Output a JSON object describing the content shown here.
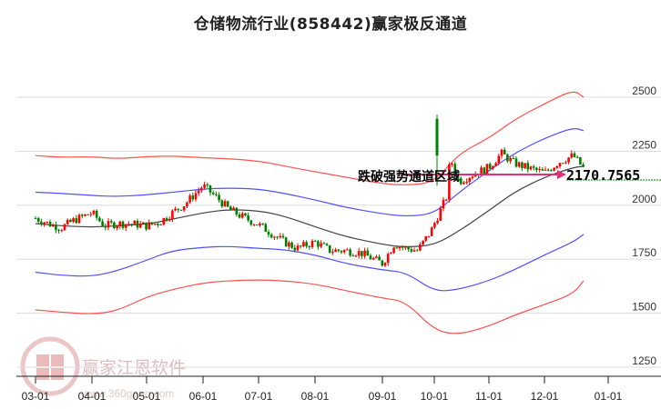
{
  "title": "仓储物流行业(858442)赢家极反通道",
  "chart_data": {
    "type": "candlestick",
    "title": "仓储物流行业(858442)赢家极反通道",
    "xlabel": "",
    "ylabel": "",
    "ylim": [
      1200,
      2600
    ],
    "y_ticks": [
      2500,
      2250,
      2000,
      1750,
      1500,
      1250
    ],
    "x_ticks": [
      "03-01",
      "04-01",
      "05-01",
      "06-01",
      "07-01",
      "08-01",
      "09-01",
      "10-01",
      "11-01",
      "12-01",
      "01-01"
    ],
    "grid": "horizontal",
    "annotation": "跌破强势通道区域",
    "last_value_label": "2170.7565",
    "last_value": 2170.7565,
    "series": [
      {
        "name": "outer_upper_channel",
        "color": "#ff3333",
        "x": [
          "03-01",
          "03-15",
          "04-01",
          "04-15",
          "05-01",
          "05-15",
          "06-01",
          "06-15",
          "07-01",
          "07-15",
          "08-01",
          "08-15",
          "09-01",
          "09-15",
          "10-01",
          "10-15",
          "11-01",
          "11-15",
          "12-01",
          "12-15",
          "12-20"
        ],
        "values": [
          2230,
          2222,
          2225,
          2215,
          2225,
          2228,
          2220,
          2215,
          2205,
          2182,
          2155,
          2130,
          2100,
          2092,
          2105,
          2240,
          2310,
          2395,
          2470,
          2535,
          2500
        ]
      },
      {
        "name": "inner_upper_channel",
        "color": "#3333ff",
        "x": [
          "03-01",
          "03-15",
          "04-01",
          "04-15",
          "05-01",
          "05-15",
          "06-01",
          "06-15",
          "07-01",
          "07-15",
          "08-01",
          "08-15",
          "09-01",
          "09-15",
          "10-01",
          "10-15",
          "11-01",
          "11-15",
          "12-01",
          "12-15",
          "12-20"
        ],
        "values": [
          2060,
          2055,
          2045,
          2040,
          2048,
          2060,
          2075,
          2080,
          2075,
          2055,
          2025,
          1990,
          1960,
          1948,
          1960,
          2060,
          2160,
          2240,
          2310,
          2360,
          2345
        ]
      },
      {
        "name": "middle_line",
        "color": "#222222",
        "x": [
          "03-01",
          "03-15",
          "04-01",
          "04-15",
          "05-01",
          "05-15",
          "06-01",
          "06-15",
          "07-01",
          "07-15",
          "08-01",
          "08-15",
          "09-01",
          "09-15",
          "10-01",
          "10-15",
          "11-01",
          "11-15",
          "12-01",
          "12-15",
          "12-20"
        ],
        "values": [
          1915,
          1905,
          1898,
          1905,
          1912,
          1935,
          1965,
          1980,
          1975,
          1950,
          1900,
          1855,
          1818,
          1805,
          1815,
          1880,
          1975,
          2060,
          2130,
          2175,
          2180
        ]
      },
      {
        "name": "inner_lower_channel",
        "color": "#3333ff",
        "x": [
          "03-01",
          "03-15",
          "04-01",
          "04-15",
          "05-01",
          "05-15",
          "06-01",
          "06-15",
          "07-01",
          "07-15",
          "08-01",
          "08-15",
          "09-01",
          "09-15",
          "10-01",
          "10-15",
          "11-01",
          "11-15",
          "12-01",
          "12-15",
          "12-20"
        ],
        "values": [
          1690,
          1675,
          1670,
          1695,
          1745,
          1790,
          1805,
          1810,
          1800,
          1795,
          1770,
          1730,
          1700,
          1690,
          1600,
          1610,
          1650,
          1700,
          1770,
          1830,
          1865
        ]
      },
      {
        "name": "outer_lower_channel",
        "color": "#ff3333",
        "x": [
          "03-01",
          "03-15",
          "04-01",
          "04-15",
          "05-01",
          "05-15",
          "06-01",
          "06-15",
          "07-01",
          "07-15",
          "08-01",
          "08-15",
          "09-01",
          "09-15",
          "10-01",
          "10-15",
          "11-01",
          "11-15",
          "12-01",
          "12-15",
          "12-20"
        ],
        "values": [
          1515,
          1505,
          1495,
          1510,
          1575,
          1610,
          1640,
          1650,
          1655,
          1650,
          1635,
          1605,
          1570,
          1555,
          1420,
          1400,
          1440,
          1490,
          1540,
          1590,
          1650
        ]
      },
      {
        "name": "price_close",
        "color": "#e00000",
        "x": [
          "03-01",
          "03-08",
          "03-15",
          "03-22",
          "04-01",
          "04-08",
          "04-15",
          "04-22",
          "05-01",
          "05-08",
          "05-15",
          "05-22",
          "06-01",
          "06-08",
          "06-15",
          "06-22",
          "07-01",
          "07-08",
          "07-15",
          "07-22",
          "08-01",
          "08-08",
          "08-15",
          "08-22",
          "09-01",
          "09-08",
          "09-15",
          "09-22",
          "09-30",
          "10-08",
          "10-10",
          "10-15",
          "10-22",
          "11-01",
          "11-08",
          "11-15",
          "11-22",
          "12-01",
          "12-08",
          "12-15",
          "12-20"
        ],
        "values": [
          1940,
          1915,
          1895,
          1930,
          1965,
          1905,
          1915,
          1915,
          1905,
          1920,
          1965,
          2005,
          2090,
          2040,
          1985,
          1950,
          1910,
          1870,
          1830,
          1800,
          1830,
          1790,
          1790,
          1780,
          1730,
          1820,
          1800,
          1790,
          1880,
          2040,
          2220,
          2110,
          2140,
          2175,
          2240,
          2195,
          2175,
          2150,
          2200,
          2230,
          2170.76
        ]
      }
    ]
  },
  "watermark": {
    "brand": "赢家江恩软件",
    "url": "www.360gann.com",
    "seal_chars": [
      "江",
      "赢",
      "恩",
      "家"
    ]
  },
  "colors": {
    "up_candle": "#ff0000",
    "down_candle": "#008000",
    "annotation_arrow": "#e0307a",
    "last_value_line": "#008000",
    "grid": "#dddddd"
  }
}
